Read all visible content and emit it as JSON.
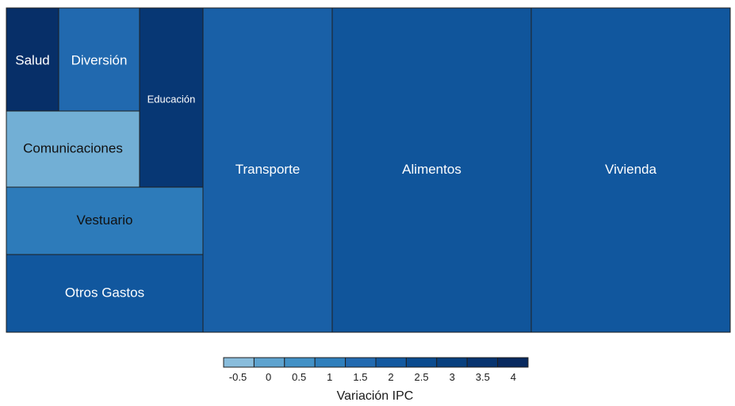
{
  "chart_data": {
    "type": "treemap",
    "color_scale": "Blues",
    "tiles": [
      {
        "label": "Salud",
        "value": 4.0
      },
      {
        "label": "Diversión",
        "value": 1.5
      },
      {
        "label": "Educación",
        "value": 3.6
      },
      {
        "label": "Comunicaciones",
        "value": -0.5
      },
      {
        "label": "Vestuario",
        "value": 1.0
      },
      {
        "label": "Otros Gastos",
        "value": 2.1
      },
      {
        "label": "Transporte",
        "value": 1.8
      },
      {
        "label": "Alimentos",
        "value": 2.2
      },
      {
        "label": "Vivienda",
        "value": 2.1
      }
    ],
    "legend": {
      "title": "Variación IPC",
      "ticks": [
        "-0.5",
        "0",
        "0.5",
        "1",
        "1.5",
        "2",
        "2.5",
        "3",
        "3.5",
        "4"
      ],
      "range": [
        -0.8,
        4.3
      ],
      "colors": [
        "#89bddc",
        "#5ea3cf",
        "#4291c6",
        "#2f7fbc",
        "#226ab0",
        "#1259a0",
        "#0a4b8f",
        "#08407f",
        "#073470",
        "#08295f"
      ]
    }
  }
}
